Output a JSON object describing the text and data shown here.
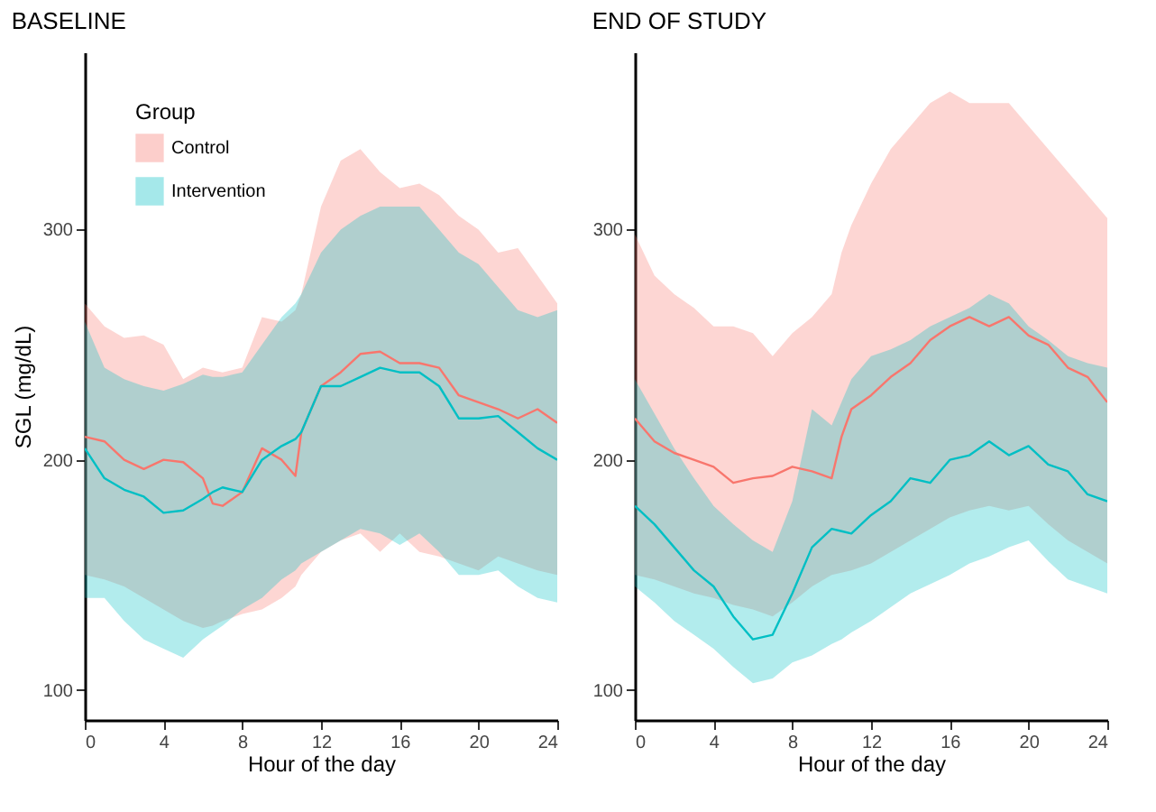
{
  "chart_data": [
    {
      "type": "line",
      "title": "BASELINE",
      "xlabel": "Hour of the day",
      "ylabel": "SGL (mg/dL)",
      "legend_title": "Group",
      "legend": "top left",
      "xlim": [
        0,
        24
      ],
      "ylim": [
        87,
        377
      ],
      "xticks": [
        0,
        4,
        8,
        12,
        16,
        20,
        24
      ],
      "yticks": [
        100,
        200,
        300
      ],
      "x": [
        0,
        1,
        2,
        3,
        4,
        5,
        6,
        6.5,
        7,
        8,
        9,
        10,
        10.7,
        11,
        12,
        13,
        14,
        15,
        16,
        17,
        18,
        19,
        20,
        21,
        22,
        23,
        24
      ],
      "series": [
        {
          "name": "Control",
          "color": "#f8766d",
          "values": [
            210,
            208,
            200,
            196,
            200,
            199,
            192,
            181,
            180,
            186,
            205,
            200,
            193,
            212,
            232,
            238,
            246,
            247,
            242,
            242,
            240,
            228,
            225,
            222,
            218,
            222,
            216
          ],
          "lower": [
            150,
            148,
            145,
            140,
            135,
            130,
            127,
            128,
            130,
            133,
            135,
            140,
            145,
            150,
            160,
            165,
            168,
            160,
            168,
            160,
            158,
            155,
            152,
            158,
            155,
            152,
            150
          ],
          "upper": [
            268,
            258,
            253,
            254,
            250,
            235,
            240,
            239,
            238,
            240,
            262,
            260,
            265,
            272,
            310,
            330,
            335,
            325,
            318,
            320,
            315,
            306,
            300,
            290,
            292,
            280,
            268
          ]
        },
        {
          "name": "Intervention",
          "color": "#00bfc4",
          "values": [
            205,
            192,
            187,
            184,
            177,
            178,
            183,
            186,
            188,
            186,
            200,
            206,
            209,
            212,
            232,
            232,
            236,
            240,
            238,
            238,
            232,
            218,
            218,
            219,
            212,
            205,
            200
          ],
          "lower": [
            140,
            140,
            130,
            122,
            118,
            114,
            122,
            125,
            128,
            135,
            140,
            148,
            152,
            155,
            160,
            165,
            170,
            168,
            163,
            168,
            160,
            150,
            150,
            152,
            145,
            140,
            138
          ],
          "upper": [
            260,
            240,
            235,
            232,
            230,
            233,
            237,
            236,
            236,
            238,
            250,
            262,
            268,
            272,
            290,
            300,
            306,
            310,
            310,
            310,
            300,
            290,
            285,
            275,
            265,
            262,
            265
          ]
        }
      ]
    },
    {
      "type": "line",
      "title": "END OF STUDY",
      "xlabel": "Hour of the day",
      "xlim": [
        0,
        24
      ],
      "ylim": [
        87,
        377
      ],
      "xticks": [
        0,
        4,
        8,
        12,
        16,
        20,
        24
      ],
      "yticks": [
        100,
        200,
        300
      ],
      "x": [
        0,
        1,
        2,
        3,
        4,
        5,
        6,
        7,
        8,
        9,
        10,
        10.5,
        11,
        12,
        13,
        14,
        15,
        16,
        17,
        18,
        19,
        20,
        21,
        22,
        23,
        24
      ],
      "series": [
        {
          "color": "#f8766d",
          "values": [
            218,
            208,
            203,
            200,
            197,
            190,
            192,
            193,
            197,
            195,
            192,
            210,
            222,
            228,
            236,
            242,
            252,
            258,
            262,
            258,
            262,
            254,
            250,
            240,
            236,
            225
          ],
          "lower": [
            150,
            148,
            145,
            142,
            140,
            137,
            135,
            132,
            138,
            145,
            150,
            151,
            152,
            155,
            160,
            165,
            170,
            175,
            178,
            180,
            178,
            180,
            172,
            165,
            160,
            155
          ],
          "upper": [
            298,
            280,
            272,
            266,
            258,
            258,
            255,
            245,
            255,
            262,
            272,
            290,
            302,
            320,
            335,
            345,
            355,
            360,
            355,
            355,
            355,
            345,
            335,
            325,
            315,
            305
          ]
        },
        {
          "color": "#00bfc4",
          "values": [
            180,
            172,
            162,
            152,
            145,
            132,
            122,
            124,
            142,
            162,
            170,
            169,
            168,
            176,
            182,
            192,
            190,
            200,
            202,
            208,
            202,
            206,
            198,
            195,
            185,
            182
          ],
          "lower": [
            145,
            138,
            130,
            124,
            118,
            110,
            103,
            105,
            112,
            115,
            120,
            122,
            125,
            130,
            136,
            142,
            146,
            150,
            155,
            158,
            162,
            165,
            156,
            148,
            145,
            142
          ],
          "upper": [
            235,
            220,
            205,
            192,
            180,
            172,
            165,
            160,
            182,
            222,
            215,
            225,
            235,
            245,
            248,
            252,
            258,
            262,
            266,
            272,
            268,
            258,
            252,
            245,
            242,
            240
          ]
        }
      ]
    }
  ]
}
